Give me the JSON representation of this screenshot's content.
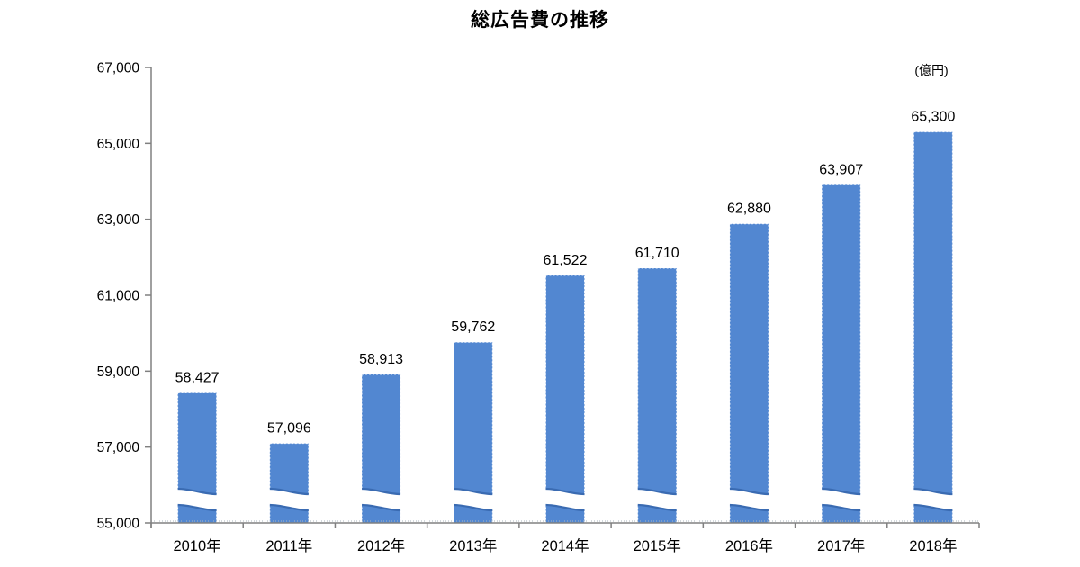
{
  "chart_data": {
    "type": "bar",
    "title": "総広告費の推移",
    "unit": "(億円)",
    "categories": [
      "2010年",
      "2011年",
      "2012年",
      "2013年",
      "2014年",
      "2015年",
      "2016年",
      "2017年",
      "2018年"
    ],
    "values": [
      58427,
      57096,
      58913,
      59762,
      61522,
      61710,
      62880,
      63907,
      65300
    ],
    "labels": [
      "58,427",
      "57,096",
      "58,913",
      "59,762",
      "61,522",
      "61,710",
      "62,880",
      "63,907",
      "65,300"
    ],
    "xlabel": "",
    "ylabel": "",
    "ylim": [
      55000,
      67000
    ],
    "ytick_step": 2000,
    "yticks": [
      55000,
      57000,
      59000,
      61000,
      63000,
      65000,
      67000
    ],
    "ytick_labels": [
      "55,000",
      "57,000",
      "59,000",
      "61,000",
      "63,000",
      "65,000",
      "67,000"
    ],
    "axis_break": true,
    "grid": false,
    "legend": "none",
    "bar_color": "#5287D1",
    "bar_edge_color": "#3A6BB2",
    "axis_color": "#808080",
    "text_color": "#000000"
  }
}
